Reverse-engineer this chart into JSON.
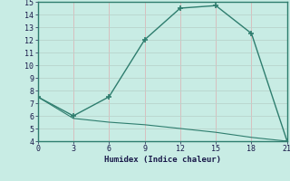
{
  "xlabel": "Humidex (Indice chaleur)",
  "line1_x": [
    0,
    3,
    6,
    9,
    12,
    15,
    18,
    21
  ],
  "line1_y": [
    7.5,
    6.0,
    7.5,
    12.0,
    14.5,
    14.7,
    12.5,
    4.0
  ],
  "line2_x": [
    0,
    3,
    6,
    9,
    12,
    15,
    18,
    21
  ],
  "line2_y": [
    7.5,
    5.8,
    5.5,
    5.3,
    5.0,
    4.7,
    4.3,
    4.0
  ],
  "line_color": "#2e7d6e",
  "bg_color": "#c8ece4",
  "grid_color_x": "#d9b8b8",
  "grid_color_y": "#b8d4cc",
  "spine_color": "#2e7d6e",
  "tick_color": "#1a1a4a",
  "xlim": [
    0,
    21
  ],
  "ylim": [
    4,
    15
  ],
  "xticks": [
    0,
    3,
    6,
    9,
    12,
    15,
    18,
    21
  ],
  "yticks": [
    4,
    5,
    6,
    7,
    8,
    9,
    10,
    11,
    12,
    13,
    14,
    15
  ]
}
